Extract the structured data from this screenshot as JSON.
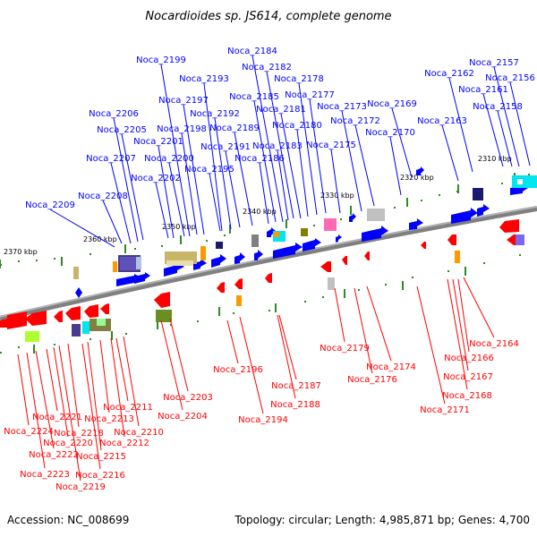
{
  "title": "Nocardioides sp. JS614, complete genome",
  "footer": {
    "accession": "Accession: NC_008699",
    "summary": "Topology: circular; Length: 4,985,871 bp; Genes: 4,700"
  },
  "colors": {
    "forward": "#0000ff",
    "reverse": "#ff0000",
    "backbone": "#808080",
    "ticks": "#2e8b22"
  },
  "kbp_labels": [
    "2310 kbp",
    "2320 kbp",
    "2330 kbp",
    "2340 kbp",
    "2350 kbp",
    "2360 kbp",
    "2370 kbp"
  ],
  "forward_genes": [
    "Noca_2156",
    "Noca_2157",
    "Noca_2158",
    "Noca_2161",
    "Noca_2162",
    "Noca_2163",
    "Noca_2169",
    "Noca_2170",
    "Noca_2172",
    "Noca_2173",
    "Noca_2175",
    "Noca_2177",
    "Noca_2178",
    "Noca_2180",
    "Noca_2181",
    "Noca_2182",
    "Noca_2183",
    "Noca_2184",
    "Noca_2185",
    "Noca_2186",
    "Noca_2189",
    "Noca_2191",
    "Noca_2192",
    "Noca_2193",
    "Noca_2195",
    "Noca_2197",
    "Noca_2198",
    "Noca_2199",
    "Noca_2200",
    "Noca_2201",
    "Noca_2202",
    "Noca_2205",
    "Noca_2206",
    "Noca_2207",
    "Noca_2208",
    "Noca_2209"
  ],
  "reverse_genes": [
    "Noca_2164",
    "Noca_2166",
    "Noca_2167",
    "Noca_2168",
    "Noca_2171",
    "Noca_2174",
    "Noca_2176",
    "Noca_2179",
    "Noca_2187",
    "Noca_2188",
    "Noca_2194",
    "Noca_2196",
    "Noca_2203",
    "Noca_2204",
    "Noca_2210",
    "Noca_2211",
    "Noca_2212",
    "Noca_2213",
    "Noca_2215",
    "Noca_2216",
    "Noca_2218",
    "Noca_2219",
    "Noca_2220",
    "Noca_2221",
    "Noca_2222",
    "Noca_2223",
    "Noca_2224"
  ]
}
